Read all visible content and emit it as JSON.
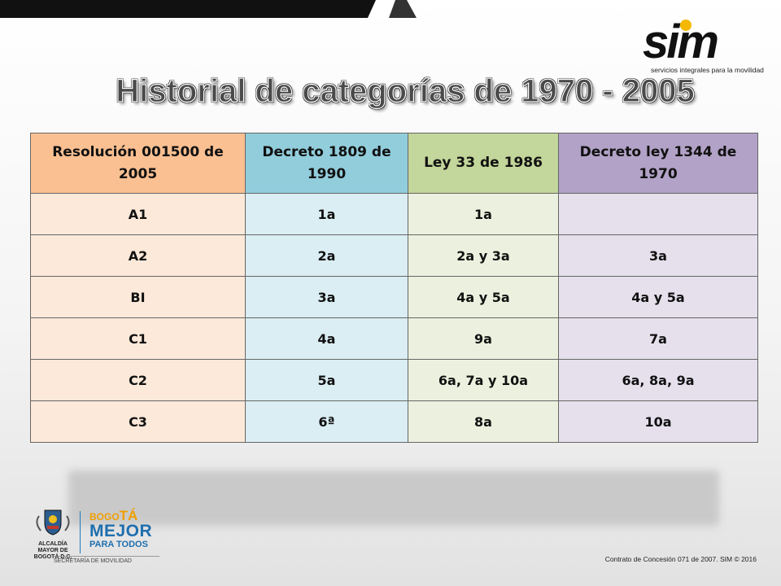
{
  "logo": {
    "wordmark": "sim",
    "tagline": "servicios integrales para la movilidad",
    "accent_color": "#f5b800"
  },
  "title": "Historial de categorías de 1970 - 2005",
  "table": {
    "headers": [
      "Resolución 001500 de 2005",
      "Decreto 1809 de 1990",
      "Ley 33 de 1986",
      "Decreto ley 1344 de 1970"
    ],
    "rows": [
      [
        "A1",
        "1a",
        "1a",
        ""
      ],
      [
        "A2",
        "2a",
        "2a y 3a",
        "3a"
      ],
      [
        "BI",
        "3a",
        "4a y 5a",
        "4a y 5a"
      ],
      [
        "C1",
        "4a",
        "9a",
        "7a"
      ],
      [
        "C2",
        "5a",
        "6a, 7a y 10a",
        "6a, 8a, 9a"
      ],
      [
        "C3",
        "6ª",
        "8a",
        "10a"
      ]
    ],
    "header_colors": [
      "#fac092",
      "#92cddc",
      "#c3d69b",
      "#b2a2c7"
    ],
    "cell_colors": [
      "#fde9d9",
      "#daeef3",
      "#ebf1de",
      "#e5e0ec"
    ]
  },
  "footer": {
    "alcaldia": "ALCALDÍA MAYOR DE BOGOTÁ D.C.",
    "bogota_prefix": "BOGO",
    "bogota_suffix": "TÁ",
    "mejor": "MEJOR",
    "para_todos": "PARA TODOS",
    "secretaria": "SECRETARÍA DE MOVILIDAD",
    "contract": "Contrato de Concesión 071 de 2007. SIM © 2016"
  }
}
